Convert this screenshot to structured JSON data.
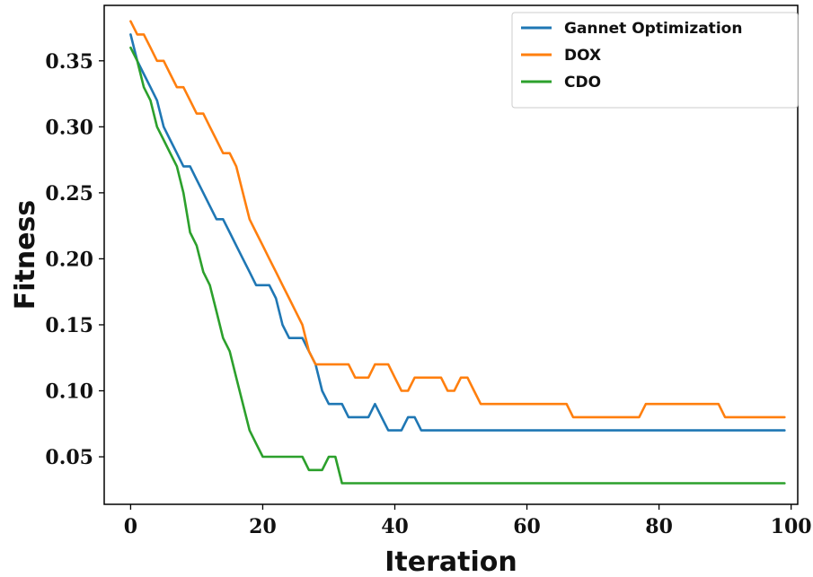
{
  "chart_data": {
    "type": "line",
    "title": "",
    "xlabel": "Iteration",
    "ylabel": "Fitness",
    "xlim": [
      -4,
      101
    ],
    "ylim": [
      0.014,
      0.392
    ],
    "xticks": [
      0,
      20,
      40,
      60,
      80,
      100
    ],
    "xtick_labels": [
      "0",
      "20",
      "40",
      "60",
      "80",
      "100"
    ],
    "yticks": [
      0.05,
      0.1,
      0.15,
      0.2,
      0.25,
      0.3,
      0.35
    ],
    "ytick_labels": [
      "0.05",
      "0.10",
      "0.15",
      "0.20",
      "0.25",
      "0.30",
      "0.35"
    ],
    "grid": false,
    "legend_position": "top-right",
    "series": [
      {
        "name": "Gannet Optimization",
        "color": "#1f77b4",
        "x": [
          0,
          1,
          2,
          3,
          4,
          5,
          6,
          7,
          8,
          9,
          10,
          11,
          12,
          13,
          14,
          15,
          16,
          17,
          18,
          19,
          20,
          21,
          22,
          23,
          24,
          25,
          26,
          27,
          28,
          29,
          30,
          31,
          32,
          33,
          34,
          35,
          36,
          37,
          38,
          39,
          40,
          41,
          42,
          43,
          44,
          99
        ],
        "y": [
          0.37,
          0.35,
          0.34,
          0.33,
          0.32,
          0.3,
          0.29,
          0.28,
          0.27,
          0.27,
          0.26,
          0.25,
          0.24,
          0.23,
          0.23,
          0.22,
          0.21,
          0.2,
          0.19,
          0.18,
          0.18,
          0.18,
          0.17,
          0.15,
          0.14,
          0.14,
          0.14,
          0.13,
          0.12,
          0.1,
          0.09,
          0.09,
          0.09,
          0.08,
          0.08,
          0.08,
          0.08,
          0.09,
          0.08,
          0.07,
          0.07,
          0.07,
          0.08,
          0.08,
          0.07,
          0.07
        ]
      },
      {
        "name": "DOX",
        "color": "#ff7f0e",
        "x": [
          0,
          1,
          2,
          3,
          4,
          5,
          6,
          7,
          8,
          9,
          10,
          11,
          12,
          13,
          14,
          15,
          16,
          17,
          18,
          19,
          20,
          21,
          22,
          23,
          24,
          25,
          26,
          27,
          28,
          29,
          30,
          31,
          32,
          33,
          34,
          35,
          36,
          37,
          38,
          39,
          40,
          41,
          42,
          43,
          44,
          45,
          46,
          47,
          48,
          49,
          50,
          51,
          52,
          53,
          66,
          67,
          77,
          78,
          89,
          90,
          99
        ],
        "y": [
          0.38,
          0.37,
          0.37,
          0.36,
          0.35,
          0.35,
          0.34,
          0.33,
          0.33,
          0.32,
          0.31,
          0.31,
          0.3,
          0.29,
          0.28,
          0.28,
          0.27,
          0.25,
          0.23,
          0.22,
          0.21,
          0.2,
          0.19,
          0.18,
          0.17,
          0.16,
          0.15,
          0.13,
          0.12,
          0.12,
          0.12,
          0.12,
          0.12,
          0.12,
          0.11,
          0.11,
          0.11,
          0.12,
          0.12,
          0.12,
          0.11,
          0.1,
          0.1,
          0.11,
          0.11,
          0.11,
          0.11,
          0.11,
          0.1,
          0.1,
          0.11,
          0.11,
          0.1,
          0.09,
          0.09,
          0.08,
          0.08,
          0.09,
          0.09,
          0.08,
          0.08
        ]
      },
      {
        "name": "CDO",
        "color": "#2ca02c",
        "x": [
          0,
          1,
          2,
          3,
          4,
          5,
          6,
          7,
          8,
          9,
          10,
          11,
          12,
          13,
          14,
          15,
          16,
          17,
          18,
          19,
          20,
          21,
          22,
          23,
          24,
          25,
          26,
          27,
          28,
          29,
          30,
          31,
          32,
          99
        ],
        "y": [
          0.36,
          0.35,
          0.33,
          0.32,
          0.3,
          0.29,
          0.28,
          0.27,
          0.25,
          0.22,
          0.21,
          0.19,
          0.18,
          0.16,
          0.14,
          0.13,
          0.11,
          0.09,
          0.07,
          0.06,
          0.05,
          0.05,
          0.05,
          0.05,
          0.05,
          0.05,
          0.05,
          0.04,
          0.04,
          0.04,
          0.05,
          0.05,
          0.03,
          0.03
        ]
      }
    ]
  }
}
